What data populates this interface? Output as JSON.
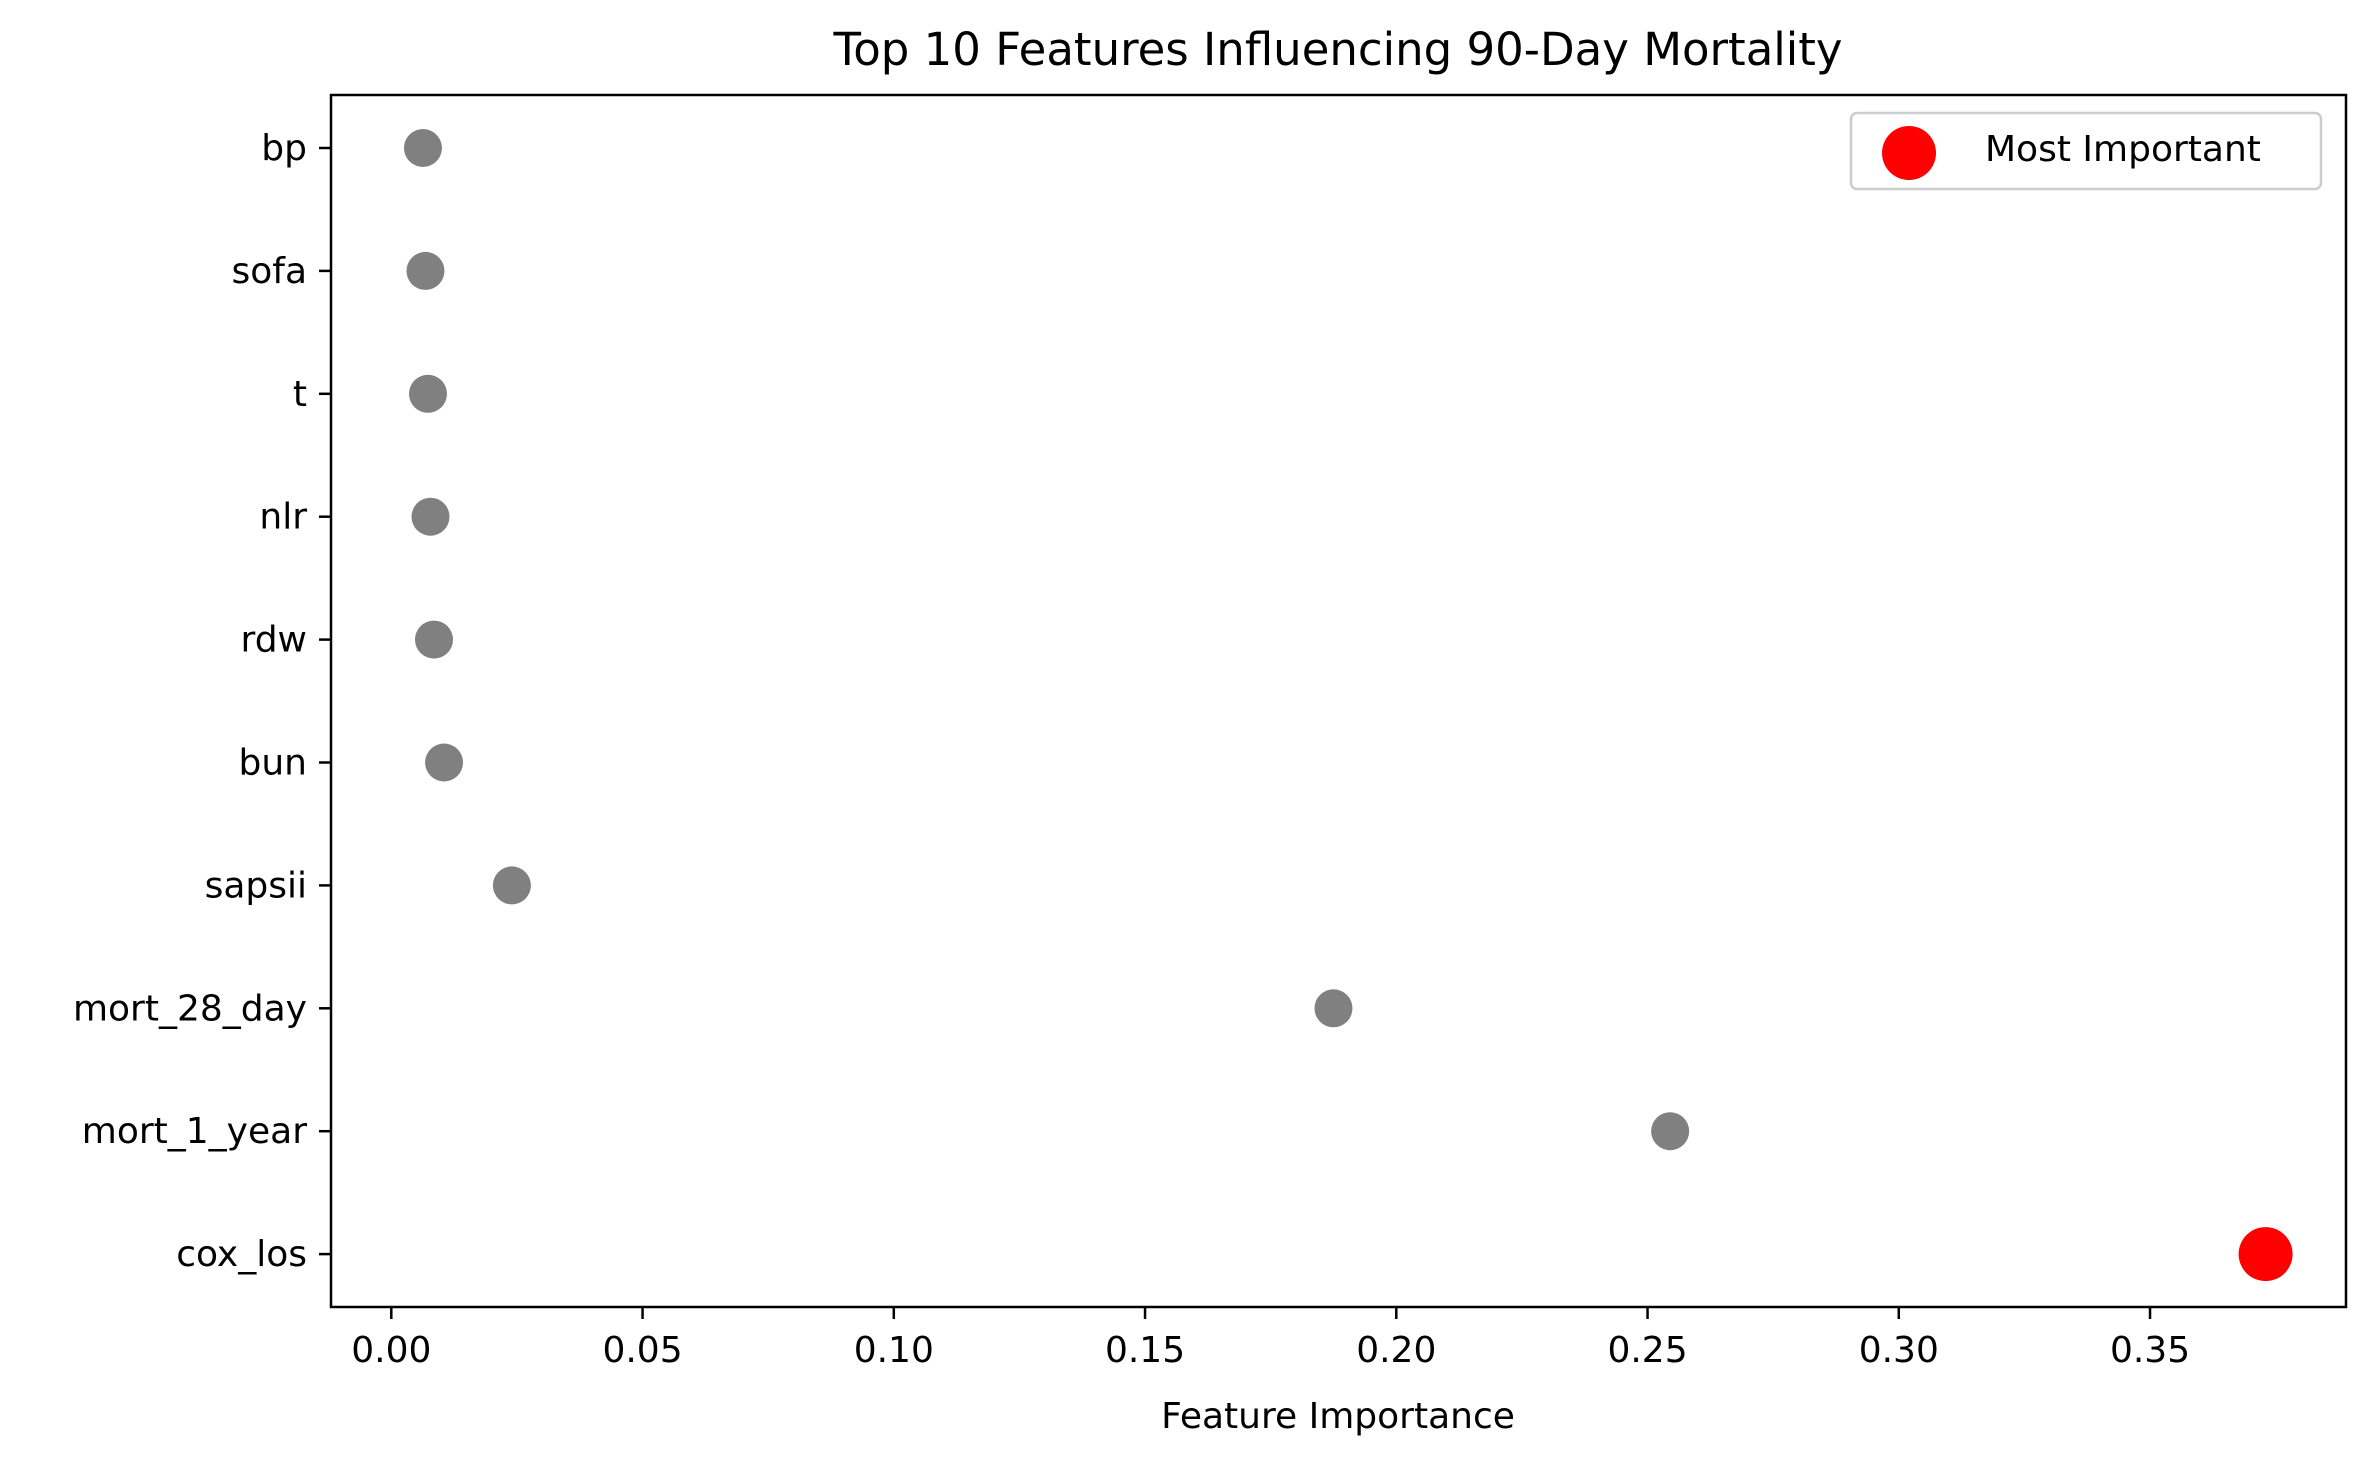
{
  "chart_data": {
    "type": "scatter",
    "title": "Top 10 Features Influencing 90-Day Mortality",
    "xlabel": "Feature Importance",
    "ylabel": "",
    "xlim": [
      -0.012,
      0.389
    ],
    "x_ticks": [
      "0.00",
      "0.05",
      "0.10",
      "0.15",
      "0.20",
      "0.25",
      "0.30",
      "0.35"
    ],
    "categories": [
      "bp",
      "sofa",
      "t",
      "nlr",
      "rdw",
      "bun",
      "sapsii",
      "mort_28_day",
      "mort_1_year",
      "cox_los"
    ],
    "values": [
      0.0063,
      0.0068,
      0.0073,
      0.0078,
      0.0085,
      0.0105,
      0.024,
      0.1875,
      0.2545,
      0.373
    ],
    "highlight_index": 9,
    "grid": false,
    "legend": {
      "position": "top-right",
      "entries": [
        {
          "label": "Most Important",
          "color": "#ff0000"
        }
      ]
    },
    "colors": {
      "default": "#808080",
      "highlight": "#ff0000"
    }
  }
}
